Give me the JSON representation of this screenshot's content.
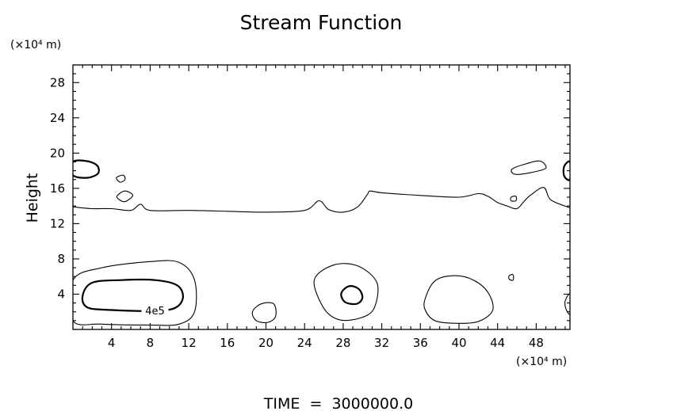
{
  "chart_data": {
    "type": "contour",
    "title": "Stream Function",
    "xlabel": "",
    "ylabel": "Height",
    "x_unit": "(×10⁴ m)",
    "y_unit": "(×10⁴ m)",
    "footer": "TIME  =  3000000.0",
    "xlim": [
      0,
      51.5
    ],
    "ylim": [
      0,
      30
    ],
    "x_ticks": [
      4,
      8,
      12,
      16,
      20,
      24,
      28,
      32,
      36,
      40,
      44,
      48
    ],
    "y_ticks": [
      4,
      8,
      12,
      16,
      20,
      24,
      28
    ],
    "contour_label": "4e5",
    "grid": false,
    "contours": [
      {
        "name": "",
        "kind": "open",
        "weight": "thin",
        "points": [
          [
            0,
            13.9
          ],
          [
            2,
            13.7
          ],
          [
            4,
            13.7
          ],
          [
            6,
            13.5
          ],
          [
            7,
            14.2
          ],
          [
            8,
            13.5
          ],
          [
            12,
            13.5
          ],
          [
            16,
            13.4
          ],
          [
            20,
            13.3
          ],
          [
            24,
            13.5
          ],
          [
            25.5,
            14.6
          ],
          [
            26.5,
            13.6
          ],
          [
            28,
            13.3
          ],
          [
            29.5,
            13.9
          ],
          [
            30.5,
            15.3
          ],
          [
            30.8,
            15.7
          ],
          [
            32,
            15.5
          ],
          [
            36,
            15.2
          ],
          [
            40,
            15.0
          ],
          [
            42,
            15.4
          ],
          [
            43,
            15.1
          ],
          [
            44,
            14.4
          ],
          [
            45,
            14.0
          ],
          [
            46,
            13.7
          ],
          [
            46.8,
            14.6
          ],
          [
            47.5,
            15.3
          ],
          [
            48.8,
            16.1
          ],
          [
            49.5,
            14.7
          ],
          [
            51.5,
            13.8
          ]
        ]
      },
      {
        "name": "",
        "kind": "closed",
        "weight": "thick",
        "points": [
          [
            0,
            19.0
          ],
          [
            1.4,
            19.1
          ],
          [
            2.5,
            18.6
          ],
          [
            2.6,
            17.7
          ],
          [
            1.5,
            17.2
          ],
          [
            0,
            17.5
          ]
        ]
      },
      {
        "name": "",
        "kind": "closed",
        "weight": "thin",
        "points": [
          [
            4.5,
            17.2
          ],
          [
            5.2,
            17.5
          ],
          [
            5.4,
            17.0
          ],
          [
            4.9,
            16.7
          ]
        ]
      },
      {
        "name": "",
        "kind": "closed",
        "weight": "thin",
        "points": [
          [
            4.6,
            15.2
          ],
          [
            5.4,
            15.7
          ],
          [
            6.2,
            15.2
          ],
          [
            5.4,
            14.5
          ],
          [
            4.7,
            14.8
          ]
        ]
      },
      {
        "name": "",
        "kind": "closed",
        "weight": "thin",
        "points": [
          [
            45.5,
            18.2
          ],
          [
            47,
            18.8
          ],
          [
            48.4,
            19.1
          ],
          [
            49.0,
            18.3
          ],
          [
            47.5,
            17.8
          ],
          [
            45.8,
            17.6
          ]
        ]
      },
      {
        "name": "",
        "kind": "closed",
        "weight": "thin",
        "points": [
          [
            45.4,
            15.0
          ],
          [
            45.9,
            15.1
          ],
          [
            45.9,
            14.6
          ],
          [
            45.4,
            14.6
          ]
        ]
      },
      {
        "name": "",
        "kind": "closed",
        "weight": "thick",
        "points": [
          [
            51.5,
            19.0
          ],
          [
            50.9,
            18.5
          ],
          [
            50.9,
            17.4
          ],
          [
            51.5,
            17.0
          ]
        ]
      },
      {
        "name": "",
        "kind": "closed",
        "weight": "thin",
        "points": [
          [
            0,
            5.6
          ],
          [
            3,
            7.0
          ],
          [
            8,
            7.7
          ],
          [
            11,
            7.6
          ],
          [
            12.6,
            5.6
          ],
          [
            12.6,
            2.0
          ],
          [
            11,
            0.6
          ],
          [
            8,
            0.5
          ],
          [
            3,
            0.6
          ],
          [
            0,
            1.0
          ]
        ]
      },
      {
        "name": "",
        "kind": "closed",
        "weight": "thick",
        "points": [
          [
            1,
            3.8
          ],
          [
            2,
            5.3
          ],
          [
            5,
            5.6
          ],
          [
            8.5,
            5.6
          ],
          [
            10.8,
            5.0
          ],
          [
            11.4,
            3.6
          ],
          [
            10.5,
            2.4
          ],
          [
            8,
            2.1
          ],
          [
            4,
            2.2
          ],
          [
            1.5,
            2.5
          ]
        ]
      },
      {
        "name": "",
        "kind": "closed",
        "weight": "thin",
        "points": [
          [
            18.6,
            2.0
          ],
          [
            19.5,
            2.9
          ],
          [
            20.8,
            2.9
          ],
          [
            21.0,
            1.5
          ],
          [
            20.2,
            0.8
          ],
          [
            19.0,
            1.0
          ]
        ]
      },
      {
        "name": "",
        "kind": "closed",
        "weight": "thin",
        "points": [
          [
            25,
            5.6
          ],
          [
            27,
            7.3
          ],
          [
            29.5,
            7.2
          ],
          [
            31.5,
            5.3
          ],
          [
            31.2,
            2.4
          ],
          [
            29.8,
            1.3
          ],
          [
            27.6,
            1.1
          ],
          [
            26.0,
            2.4
          ]
        ]
      },
      {
        "name": "",
        "kind": "closed",
        "weight": "thick",
        "points": [
          [
            27.8,
            4.1
          ],
          [
            28.6,
            4.9
          ],
          [
            29.6,
            4.6
          ],
          [
            30.0,
            3.6
          ],
          [
            29.4,
            2.9
          ],
          [
            28.2,
            3.1
          ]
        ]
      },
      {
        "name": "",
        "kind": "closed",
        "weight": "thin",
        "points": [
          [
            36.5,
            3.5
          ],
          [
            37.5,
            5.5
          ],
          [
            39.5,
            6.1
          ],
          [
            41.5,
            5.6
          ],
          [
            43.0,
            4.2
          ],
          [
            43.5,
            2.2
          ],
          [
            42,
            0.9
          ],
          [
            39.5,
            0.7
          ],
          [
            37.5,
            1.0
          ],
          [
            36.5,
            2.2
          ]
        ]
      },
      {
        "name": "",
        "kind": "closed",
        "weight": "thin",
        "points": [
          [
            45.2,
            6.1
          ],
          [
            45.6,
            6.2
          ],
          [
            45.6,
            5.6
          ],
          [
            45.2,
            5.7
          ]
        ]
      },
      {
        "name": "",
        "kind": "closed",
        "weight": "thin",
        "points": [
          [
            51.5,
            4.0
          ],
          [
            51.0,
            3.2
          ],
          [
            51.1,
            2.3
          ],
          [
            51.5,
            1.8
          ]
        ]
      }
    ]
  }
}
